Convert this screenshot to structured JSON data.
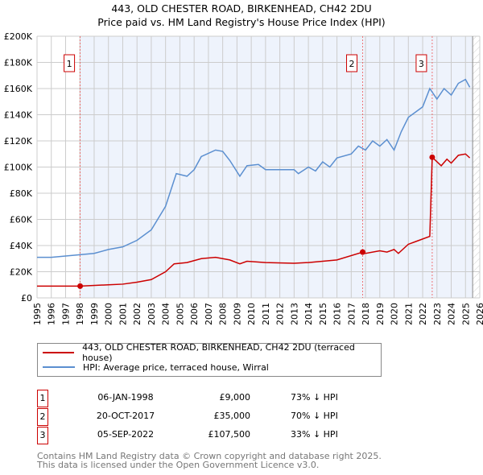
{
  "chart_data": {
    "type": "line",
    "title": "443, OLD CHESTER ROAD, BIRKENHEAD, CH42 2DU",
    "subtitle": "Price paid vs. HM Land Registry's House Price Index (HPI)",
    "xlim": [
      1995,
      2026
    ],
    "ylim": [
      0,
      200000
    ],
    "x_ticks": [
      "1995",
      "1996",
      "1997",
      "1998",
      "1999",
      "2000",
      "2001",
      "2002",
      "2003",
      "2004",
      "2005",
      "2006",
      "2007",
      "2008",
      "2009",
      "2010",
      "2011",
      "2012",
      "2013",
      "2014",
      "2015",
      "2016",
      "2017",
      "2018",
      "2019",
      "2020",
      "2021",
      "2022",
      "2023",
      "2024",
      "2025",
      "2026"
    ],
    "y_ticks": [
      {
        "v": 0,
        "l": "£0"
      },
      {
        "v": 20000,
        "l": "£20K"
      },
      {
        "v": 40000,
        "l": "£40K"
      },
      {
        "v": 60000,
        "l": "£60K"
      },
      {
        "v": 80000,
        "l": "£80K"
      },
      {
        "v": 100000,
        "l": "£100K"
      },
      {
        "v": 120000,
        "l": "£120K"
      },
      {
        "v": 140000,
        "l": "£140K"
      },
      {
        "v": 160000,
        "l": "£160K"
      },
      {
        "v": 180000,
        "l": "£180K"
      },
      {
        "v": 200000,
        "l": "£200K"
      }
    ],
    "grid": true,
    "series": [
      {
        "name": "443, OLD CHESTER ROAD, BIRKENHEAD, CH42 2DU (terraced house)",
        "color": "#cc0000",
        "x": [
          1995,
          1998.02,
          2000,
          2001,
          2002,
          2003,
          2004,
          2004.6,
          2005.5,
          2006.5,
          2007.5,
          2008.5,
          2009.2,
          2009.7,
          2011,
          2013,
          2014,
          2015,
          2016,
          2017.8,
          2018,
          2019,
          2019.5,
          2020,
          2020.3,
          2021,
          2021.5,
          2022.5,
          2022.67,
          2023.3,
          2023.7,
          2024,
          2024.5,
          2025,
          2025.3
        ],
        "y": [
          9000,
          9000,
          10000,
          10500,
          12000,
          14000,
          20000,
          26000,
          27000,
          30000,
          31000,
          29000,
          26000,
          28000,
          27000,
          26500,
          27000,
          28000,
          29000,
          35000,
          34000,
          36000,
          35000,
          37000,
          34000,
          41000,
          43000,
          47000,
          107500,
          101000,
          106000,
          103000,
          109000,
          110000,
          107000
        ]
      },
      {
        "name": "HPI: Average price, terraced house, Wirral",
        "color": "#5b8fd0",
        "x": [
          1995,
          1996,
          1997,
          1998,
          1999,
          2000,
          2001,
          2002,
          2003,
          2004,
          2004.75,
          2005.5,
          2006,
          2006.5,
          2007.5,
          2008,
          2008.5,
          2009.2,
          2009.7,
          2010.5,
          2011,
          2012,
          2013,
          2013.3,
          2014,
          2014.5,
          2015,
          2015.5,
          2016,
          2017,
          2017.5,
          2018,
          2018.5,
          2019,
          2019.5,
          2020,
          2020.5,
          2021,
          2021.5,
          2022,
          2022.5,
          2023,
          2023.5,
          2024,
          2024.5,
          2025,
          2025.3
        ],
        "y": [
          31000,
          31000,
          32000,
          33000,
          34000,
          37000,
          39000,
          44000,
          52000,
          70000,
          95000,
          93000,
          98000,
          108000,
          113000,
          112000,
          105000,
          93000,
          101000,
          102000,
          98000,
          98000,
          98000,
          95000,
          100000,
          97000,
          104000,
          100000,
          107000,
          110000,
          116000,
          113000,
          120000,
          116000,
          121000,
          113000,
          127000,
          138000,
          142000,
          146000,
          160000,
          152000,
          160000,
          155000,
          164000,
          167000,
          161000
        ]
      }
    ],
    "sales": [
      {
        "n": "1",
        "x": 1998.02,
        "y": 9000
      },
      {
        "n": "2",
        "x": 2017.8,
        "y": 35000
      },
      {
        "n": "3",
        "x": 2022.67,
        "y": 107500
      }
    ]
  },
  "legend": {
    "property": "443, OLD CHESTER ROAD, BIRKENHEAD, CH42 2DU (terraced house)",
    "hpi": "HPI: Average price, terraced house, Wirral"
  },
  "transactions": [
    {
      "n": "1",
      "date": "06-JAN-1998",
      "price": "£9,000",
      "hpi": "73% ↓ HPI"
    },
    {
      "n": "2",
      "date": "20-OCT-2017",
      "price": "£35,000",
      "hpi": "70% ↓ HPI"
    },
    {
      "n": "3",
      "date": "05-SEP-2022",
      "price": "£107,500",
      "hpi": "33% ↓ HPI"
    }
  ],
  "footer": {
    "line1": "Contains HM Land Registry data © Crown copyright and database right 2025.",
    "line2": "This data is licensed under the Open Government Licence v3.0."
  }
}
